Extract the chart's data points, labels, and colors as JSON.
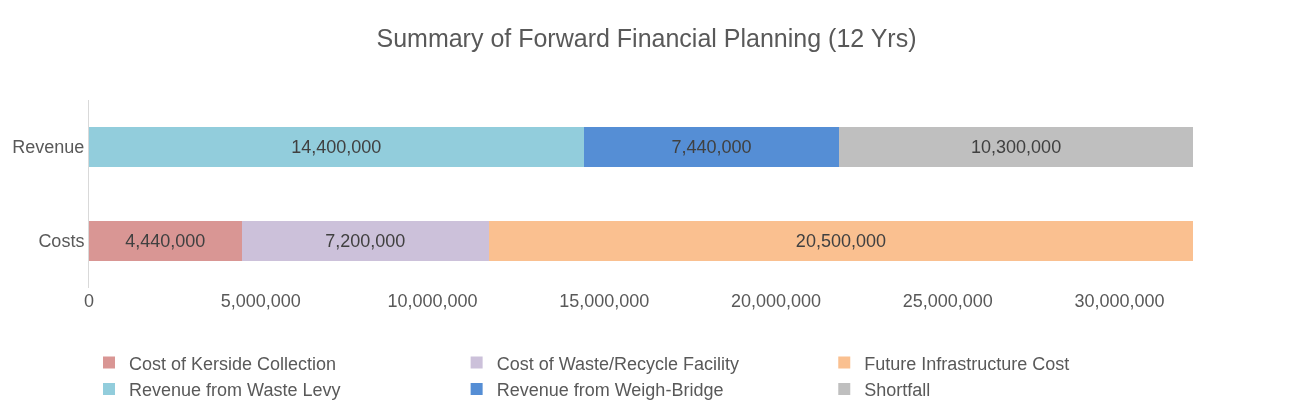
{
  "chart_data": {
    "type": "bar",
    "orientation": "horizontal",
    "stacked": true,
    "title": "Summary of Forward Financial Planning (12 Yrs)",
    "categories": [
      "Revenue",
      "Costs"
    ],
    "series": [
      {
        "name": "Cost of Kerside Collection",
        "color": "#d99694",
        "values": [
          null,
          4440000
        ],
        "value_labels": [
          null,
          "4,440,000"
        ]
      },
      {
        "name": "Cost of Waste/Recycle Facility",
        "color": "#ccc1da",
        "values": [
          null,
          7200000
        ],
        "value_labels": [
          null,
          "7,200,000"
        ]
      },
      {
        "name": "Future Infrastructure Cost",
        "color": "#fac090",
        "values": [
          null,
          20500000
        ],
        "value_labels": [
          null,
          "20,500,000"
        ]
      },
      {
        "name": "Revenue from Waste Levy",
        "color": "#92cddc",
        "values": [
          14400000,
          null
        ],
        "value_labels": [
          "14,400,000",
          null
        ]
      },
      {
        "name": "Revenue from Weigh-Bridge",
        "color": "#558ed5",
        "values": [
          7440000,
          null
        ],
        "value_labels": [
          "7,440,000",
          null
        ]
      },
      {
        "name": "Shortfall",
        "color": "#bfbfbf",
        "values": [
          10300000,
          null
        ],
        "value_labels": [
          "10,300,000",
          null
        ]
      }
    ],
    "xlim": [
      0,
      32140000
    ],
    "xticks": [
      {
        "value": 0,
        "label": "0"
      },
      {
        "value": 5000000,
        "label": "5,000,000"
      },
      {
        "value": 10000000,
        "label": "10,000,000"
      },
      {
        "value": 15000000,
        "label": "15,000,000"
      },
      {
        "value": 20000000,
        "label": "20,000,000"
      },
      {
        "value": 25000000,
        "label": "25,000,000"
      },
      {
        "value": 30000000,
        "label": "30,000,000"
      }
    ],
    "grid": false,
    "legend": "bottom"
  }
}
